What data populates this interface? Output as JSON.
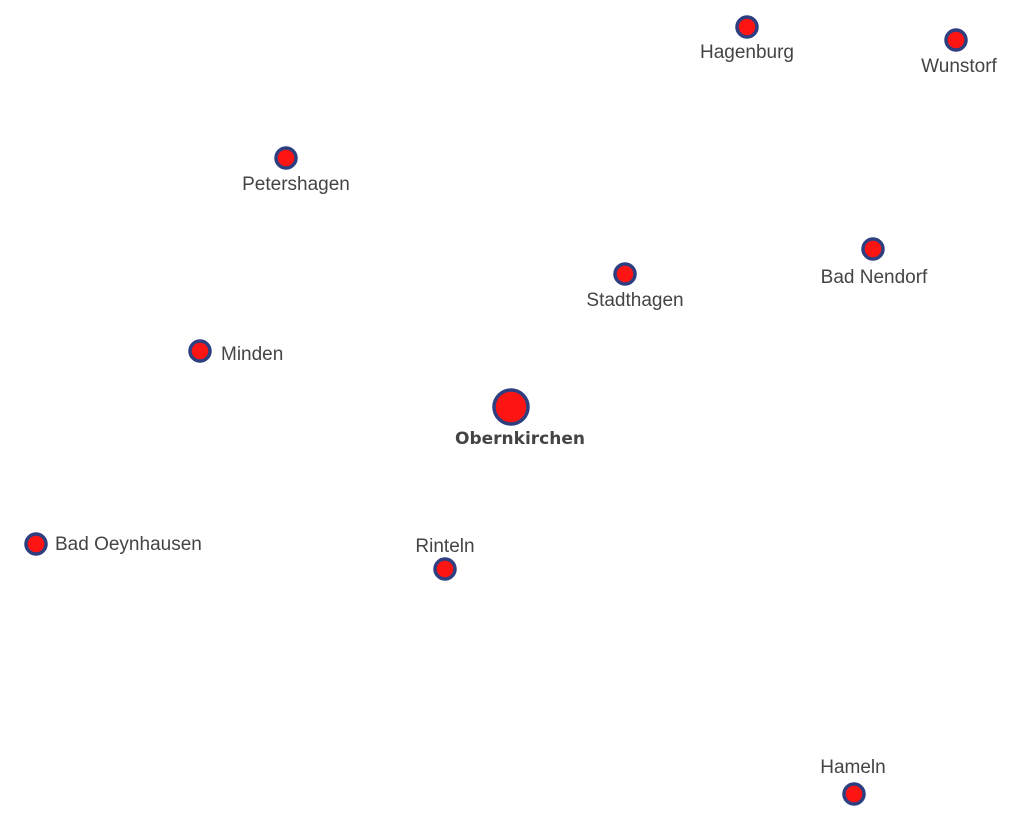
{
  "places": [
    {
      "name": "Hagenburg"
    },
    {
      "name": "Wunstorf"
    },
    {
      "name": "Petershagen"
    },
    {
      "name": "Stadthagen"
    },
    {
      "name": "Bad Nendorf"
    },
    {
      "name": "Minden"
    },
    {
      "name": "Obernkirchen"
    },
    {
      "name": "Bad Oeynhausen"
    },
    {
      "name": "Rinteln"
    },
    {
      "name": "Hameln"
    }
  ]
}
